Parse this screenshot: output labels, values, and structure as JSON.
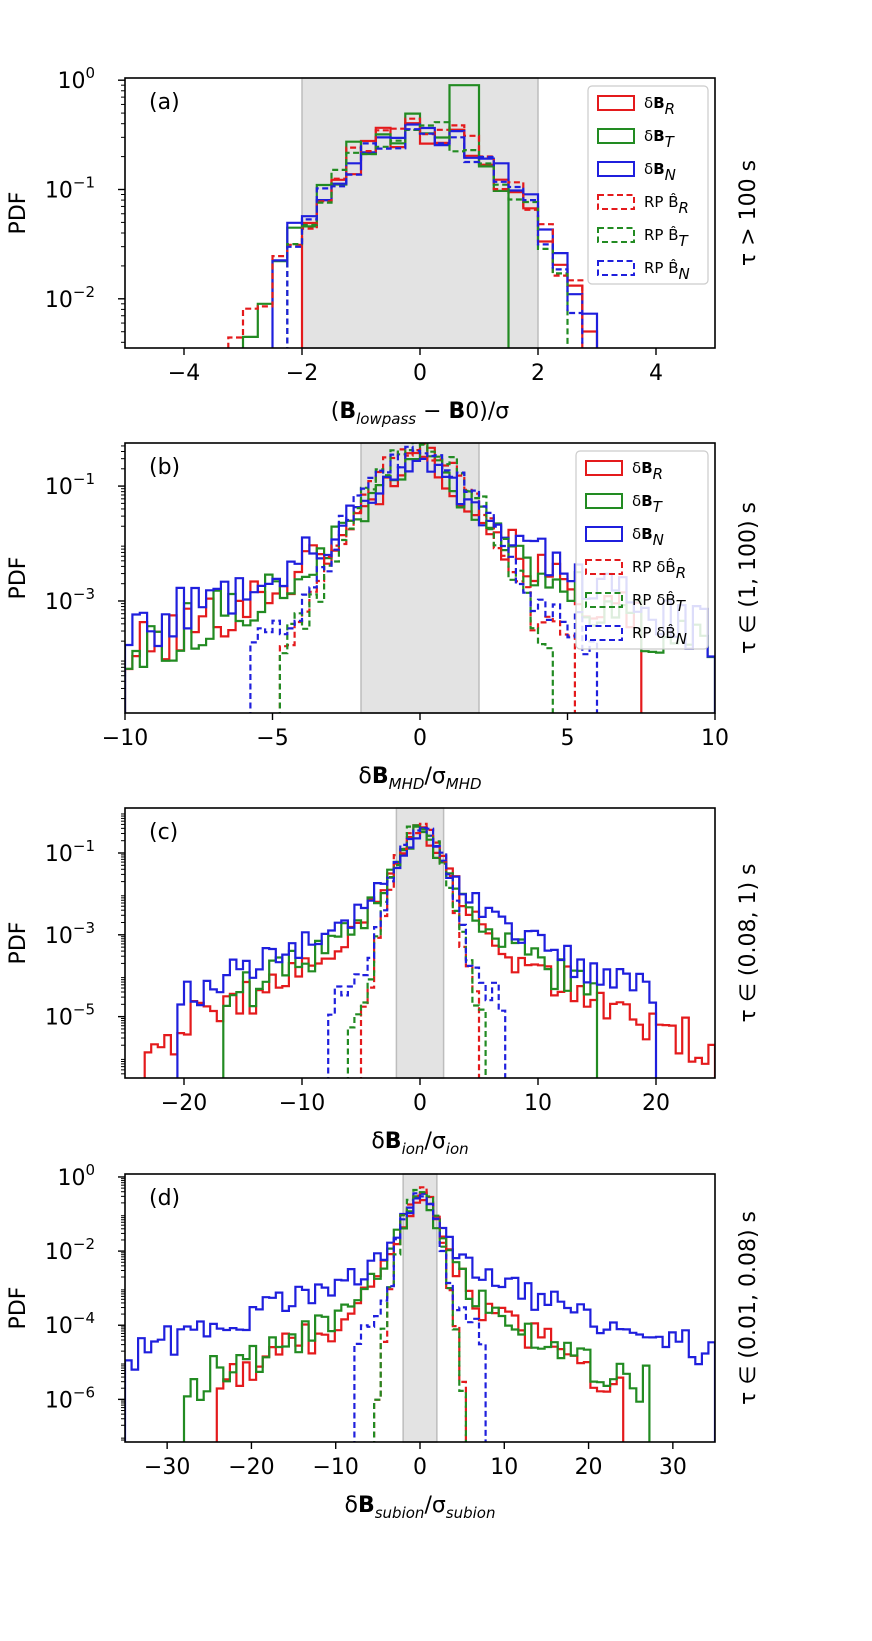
{
  "figure": {
    "colors": {
      "R": "#e41a1c",
      "T": "#228b22",
      "N": "#1f1fdd",
      "shade": "#e3e3e3",
      "shade_edge": "#bdbdbd"
    }
  },
  "chart_data": [
    {
      "type": "step-histogram",
      "panel_label": "(a)",
      "ylabel": "PDF",
      "xlabel": "(B_lowpass − B0)/σ",
      "right_label": "τ > 100 s",
      "xlim": [
        -5,
        5
      ],
      "log_ylim": [
        -2.45,
        0.02
      ],
      "yscale": "log",
      "x_ticks": [
        -4,
        -2,
        0,
        2,
        4
      ],
      "x_tick_labels": [
        "−4",
        "−2",
        "0",
        "2",
        "4"
      ],
      "y_ticks": [
        0,
        -1,
        -2
      ],
      "y_tick_labels": [
        [
          "10",
          "0"
        ],
        [
          "10",
          "−1"
        ],
        [
          "10",
          "−2"
        ]
      ],
      "shade": [
        -2,
        2
      ],
      "legend": {
        "labels": [
          "δB_R",
          "δB_T",
          "δB_N",
          "RP B̂_R",
          "RP B̂_T",
          "RP B̂_N"
        ]
      },
      "series": [
        {
          "name": "δB_R",
          "comp": "R",
          "style": "solid",
          "params": {
            "kind": "gauss",
            "a": 0.35,
            "w": 1.0,
            "noise": 0.35
          },
          "cut": [
            -2.0,
            3.4
          ],
          "seed": 11
        },
        {
          "name": "δB_T",
          "comp": "T",
          "style": "solid",
          "params": {
            "kind": "gauss",
            "a": 0.4,
            "w": 0.95,
            "noise": 0.4
          },
          "cut": [
            -3.3,
            1.4
          ],
          "seed": 23,
          "spike": [
            0.78,
            0.9
          ]
        },
        {
          "name": "δB_N",
          "comp": "N",
          "style": "solid",
          "params": {
            "kind": "gauss",
            "a": 0.35,
            "w": 1.05,
            "noise": 0.3
          },
          "cut": [
            -2.3,
            3.1
          ],
          "seed": 37
        },
        {
          "name": "RP B̂_R",
          "comp": "R",
          "style": "dashed",
          "params": {
            "kind": "gauss",
            "a": 0.35,
            "w": 1.0,
            "noise": 0.3
          },
          "cut": [
            -3.3,
            2.6
          ],
          "seed": 41
        },
        {
          "name": "RP B̂_T",
          "comp": "T",
          "style": "dashed",
          "params": {
            "kind": "gauss",
            "a": 0.36,
            "w": 1.0,
            "noise": 0.3
          },
          "cut": [
            -2.2,
            2.4
          ],
          "seed": 53
        },
        {
          "name": "RP B̂_N",
          "comp": "N",
          "style": "dashed",
          "params": {
            "kind": "gauss",
            "a": 0.34,
            "w": 1.0,
            "noise": 0.3
          },
          "cut": [
            -2.2,
            2.6
          ],
          "seed": 67
        }
      ],
      "bins": 40
    },
    {
      "type": "step-histogram",
      "panel_label": "(b)",
      "ylabel": "PDF",
      "xlabel": "δB_MHD/σ_MHD",
      "right_label": "τ ∈ (1, 100) s",
      "xlim": [
        -10,
        10
      ],
      "log_ylim": [
        -4.95,
        -0.25
      ],
      "yscale": "log",
      "x_ticks": [
        -10,
        -5,
        0,
        5,
        10
      ],
      "x_tick_labels": [
        "−10",
        "−5",
        "0",
        "5",
        "10"
      ],
      "y_ticks": [
        -1,
        -3
      ],
      "y_tick_labels": [
        [
          "10",
          "−1"
        ],
        [
          "10",
          "−3"
        ]
      ],
      "shade": [
        -2,
        2
      ],
      "legend": {
        "labels": [
          "δB_R",
          "δB_T",
          "δB_N",
          "RP δB̂_R",
          "RP δB̂_T",
          "RP δB̂_N"
        ]
      },
      "series": [
        {
          "name": "δB_R",
          "comp": "R",
          "style": "solid",
          "params": {
            "kind": "exp",
            "a": 0.5,
            "s": 0.66,
            "tailA": 0.02,
            "tailS": 1.9,
            "noise": 0.5
          },
          "cut": [
            -10,
            7.3
          ],
          "seed": 101
        },
        {
          "name": "δB_T",
          "comp": "T",
          "style": "solid",
          "params": {
            "kind": "exp",
            "a": 0.5,
            "s": 0.64,
            "tailA": 0.02,
            "tailS": 1.9,
            "noise": 0.5
          },
          "cut": [
            -10,
            10
          ],
          "seed": 113
        },
        {
          "name": "δB_N",
          "comp": "N",
          "style": "solid",
          "params": {
            "kind": "exp",
            "a": 0.42,
            "s": 0.72,
            "tailA": 0.03,
            "tailS": 2.1,
            "noise": 0.5
          },
          "cut": [
            -10,
            10
          ],
          "seed": 127
        },
        {
          "name": "RP δB̂_R",
          "comp": "R",
          "style": "dashed",
          "params": {
            "kind": "gauss",
            "a": 0.42,
            "w": 1.0,
            "tailA": 0.008,
            "tailS": 1.3,
            "noise": 0.4
          },
          "cut": [
            -4.6,
            5.1
          ],
          "seed": 131
        },
        {
          "name": "RP δB̂_T",
          "comp": "T",
          "style": "dashed",
          "params": {
            "kind": "gauss",
            "a": 0.42,
            "w": 1.0,
            "tailA": 0.008,
            "tailS": 1.2,
            "noise": 0.4
          },
          "cut": [
            -4.7,
            4.3
          ],
          "seed": 149
        },
        {
          "name": "RP δB̂_N",
          "comp": "N",
          "style": "dashed",
          "params": {
            "kind": "gauss",
            "a": 0.36,
            "w": 1.05,
            "tailA": 0.015,
            "tailS": 1.4,
            "noise": 0.4
          },
          "cut": [
            -5.7,
            6.0
          ],
          "seed": 157
        }
      ],
      "bins": 80
    },
    {
      "type": "step-histogram",
      "panel_label": "(c)",
      "ylabel": "PDF",
      "xlabel": "δB_ion/σ_ion",
      "right_label": "τ ∈ (0.08, 1) s",
      "xlim": [
        -25,
        25
      ],
      "log_ylim": [
        -6.5,
        0.1
      ],
      "yscale": "log",
      "x_ticks": [
        -20,
        -10,
        0,
        10,
        20
      ],
      "x_tick_labels": [
        "−20",
        "−10",
        "0",
        "10",
        "20"
      ],
      "y_ticks": [
        -1,
        -3,
        -5
      ],
      "y_tick_labels": [
        [
          "10",
          "−1"
        ],
        [
          "10",
          "−3"
        ],
        [
          "10",
          "−5"
        ]
      ],
      "shade": [
        -2,
        2
      ],
      "series": [
        {
          "name": "δB_R",
          "comp": "R",
          "style": "solid",
          "params": {
            "kind": "exp",
            "a": 0.5,
            "s": 0.85,
            "tailA": 0.003,
            "tailS": 3.2,
            "noise": 0.45
          },
          "cut": [
            -23,
            25
          ],
          "seed": 211
        },
        {
          "name": "δB_T",
          "comp": "T",
          "style": "solid",
          "params": {
            "kind": "exp",
            "a": 0.5,
            "s": 0.85,
            "tailA": 0.004,
            "tailS": 3.3,
            "noise": 0.45
          },
          "cut": [
            -16.5,
            14.5
          ],
          "seed": 223
        },
        {
          "name": "δB_N",
          "comp": "N",
          "style": "solid",
          "params": {
            "kind": "exp",
            "a": 0.42,
            "s": 1.0,
            "tailA": 0.008,
            "tailS": 3.6,
            "noise": 0.4
          },
          "cut": [
            -20.5,
            20
          ],
          "seed": 227
        },
        {
          "name": "RP δB̂_R",
          "comp": "R",
          "style": "dashed",
          "params": {
            "kind": "gauss",
            "a": 0.45,
            "w": 1.0,
            "tailA": 0.002,
            "tailS": 1.0,
            "noise": 0.35
          },
          "cut": [
            -4.6,
            4.9
          ],
          "seed": 229
        },
        {
          "name": "RP δB̂_T",
          "comp": "T",
          "style": "dashed",
          "params": {
            "kind": "gauss",
            "a": 0.45,
            "w": 1.0,
            "tailA": 0.002,
            "tailS": 1.05,
            "noise": 0.35
          },
          "cut": [
            -5.6,
            5.1
          ],
          "seed": 233
        },
        {
          "name": "RP δB̂_N",
          "comp": "N",
          "style": "dashed",
          "params": {
            "kind": "gauss",
            "a": 0.4,
            "w": 1.05,
            "tailA": 0.004,
            "tailS": 1.35,
            "noise": 0.35
          },
          "cut": [
            -7.5,
            7.2
          ],
          "seed": 239
        }
      ],
      "bins": 90
    },
    {
      "type": "step-histogram",
      "panel_label": "(d)",
      "ylabel": "PDF",
      "xlabel": "δB_subion/σ_subion",
      "right_label": "τ ∈ (0.01, 0.08) s",
      "xlim": [
        -35,
        35
      ],
      "log_ylim": [
        -7.15,
        0.08
      ],
      "yscale": "log",
      "x_ticks": [
        -30,
        -20,
        -10,
        0,
        10,
        20,
        30
      ],
      "x_tick_labels": [
        "−30",
        "−20",
        "−10",
        "0",
        "10",
        "20",
        "30"
      ],
      "y_ticks": [
        0,
        -2,
        -4,
        -6
      ],
      "y_tick_labels": [
        [
          "10",
          "0"
        ],
        [
          "10",
          "−2"
        ],
        [
          "10",
          "−4"
        ],
        [
          "10",
          "−6"
        ]
      ],
      "shade": [
        -2,
        2
      ],
      "series": [
        {
          "name": "δB_R",
          "comp": "R",
          "style": "solid",
          "params": {
            "kind": "exp",
            "a": 0.45,
            "s": 0.9,
            "tailA": 0.0015,
            "tailS": 3.8,
            "noise": 0.45
          },
          "cut": [
            -23.5,
            24
          ],
          "seed": 311
        },
        {
          "name": "δB_T",
          "comp": "T",
          "style": "solid",
          "params": {
            "kind": "exp",
            "a": 0.48,
            "s": 0.9,
            "tailA": 0.0018,
            "tailS": 4.0,
            "noise": 0.45
          },
          "cut": [
            -28,
            27
          ],
          "seed": 313
        },
        {
          "name": "δB_N",
          "comp": "N",
          "style": "solid",
          "params": {
            "kind": "exp",
            "a": 0.36,
            "s": 1.1,
            "tailA": 0.006,
            "tailS": 5.8,
            "noise": 0.4
          },
          "cut": [
            -35,
            35
          ],
          "seed": 317
        },
        {
          "name": "RP δB̂_R",
          "comp": "R",
          "style": "dashed",
          "params": {
            "kind": "gauss",
            "a": 0.45,
            "w": 1.0,
            "noise": 0.3
          },
          "cut": [
            -5.4,
            5.8
          ],
          "seed": 331
        },
        {
          "name": "RP δB̂_T",
          "comp": "T",
          "style": "dashed",
          "params": {
            "kind": "gauss",
            "a": 0.45,
            "w": 1.0,
            "noise": 0.3
          },
          "cut": [
            -5.4,
            5.5
          ],
          "seed": 337
        },
        {
          "name": "RP δB̂_N",
          "comp": "N",
          "style": "dashed",
          "params": {
            "kind": "gauss",
            "a": 0.38,
            "w": 1.05,
            "tailA": 0.004,
            "tailS": 1.6,
            "noise": 0.35
          },
          "cut": [
            -7.4,
            7.2
          ],
          "seed": 347
        }
      ],
      "bins": 90
    }
  ]
}
